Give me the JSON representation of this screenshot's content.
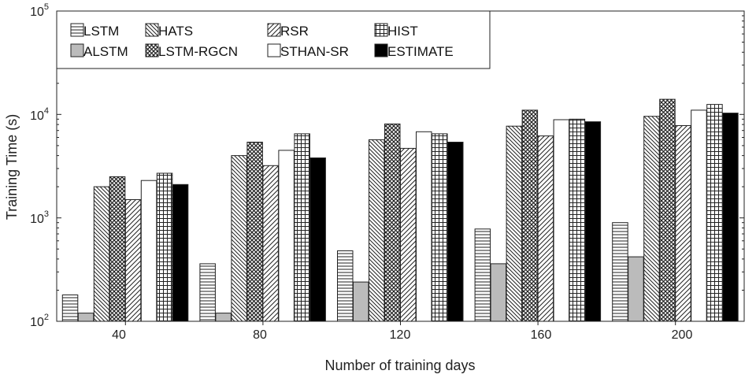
{
  "chart_data": {
    "type": "bar",
    "y_scale": "log",
    "title": "",
    "xlabel": "Number of training days",
    "ylabel": "Training Time (s)",
    "ylim": [
      100,
      100000
    ],
    "y_ticks": [
      {
        "value": 100,
        "base": "10",
        "exp": "2"
      },
      {
        "value": 1000,
        "base": "10",
        "exp": "3"
      },
      {
        "value": 10000,
        "base": "10",
        "exp": "4"
      },
      {
        "value": 100000,
        "base": "10",
        "exp": "5"
      }
    ],
    "categories": [
      "40",
      "80",
      "120",
      "160",
      "200"
    ],
    "legend_position": "top-left",
    "series": [
      {
        "name": "LSTM",
        "pattern": "horizontal",
        "values": [
          180,
          360,
          480,
          780,
          900
        ]
      },
      {
        "name": "ALSTM",
        "pattern": "gray",
        "values": [
          120,
          120,
          240,
          360,
          420
        ]
      },
      {
        "name": "HATS",
        "pattern": "backslash",
        "values": [
          2000,
          4000,
          5700,
          7700,
          9600
        ]
      },
      {
        "name": "LSTM-RGCN",
        "pattern": "crosshatch",
        "values": [
          2500,
          5400,
          8100,
          11000,
          14000
        ]
      },
      {
        "name": "RSR",
        "pattern": "slash",
        "values": [
          1500,
          3200,
          4700,
          6200,
          7800
        ]
      },
      {
        "name": "STHAN-SR",
        "pattern": "white",
        "values": [
          2300,
          4500,
          6800,
          8900,
          11000
        ]
      },
      {
        "name": "HIST",
        "pattern": "grid",
        "values": [
          2700,
          6500,
          6500,
          9000,
          12500
        ]
      },
      {
        "name": "ESTIMATE",
        "pattern": "black",
        "values": [
          2100,
          3800,
          5400,
          8500,
          10300
        ]
      }
    ]
  }
}
